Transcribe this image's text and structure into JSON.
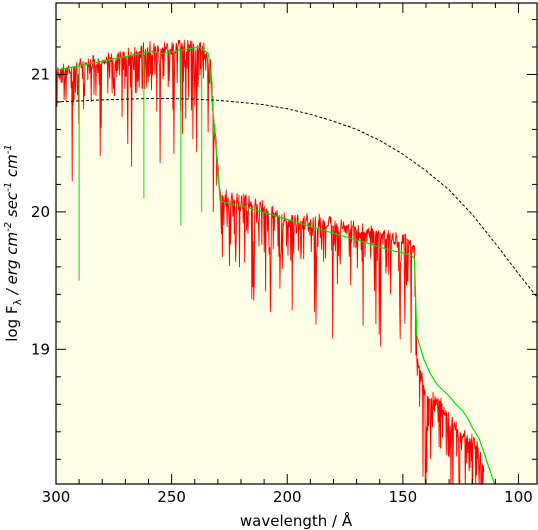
{
  "chart_data": {
    "type": "line",
    "xlabel": "wavelength / Å",
    "ylabel": {
      "prefix": "log F",
      "sub": "λ",
      "mid": " / erg cm",
      "sup1": "-2",
      "mid2": " sec",
      "sup2": "-1",
      "mid3": " cm",
      "sup3": "-1"
    },
    "xlim": [
      300,
      92
    ],
    "ylim": [
      18.02,
      21.52
    ],
    "x_reversed": true,
    "x_ticks": [
      300,
      250,
      200,
      150,
      100
    ],
    "y_ticks": [
      19,
      20,
      21
    ],
    "grid": false,
    "background": "#ffffe8",
    "series": [
      {
        "color": "#ff0000",
        "style": "noisy-spectrum",
        "x": [
          300,
          295,
          290,
          285,
          280,
          275,
          270,
          265,
          260,
          255,
          250,
          245,
          240,
          236,
          233,
          231,
          229,
          225,
          220,
          210,
          200,
          190,
          180,
          170,
          160,
          155,
          152,
          150,
          148,
          146,
          145,
          144,
          142,
          140,
          138,
          135,
          132,
          130,
          128,
          125,
          122,
          120,
          118,
          116,
          115
        ],
        "y": [
          21.06,
          21.08,
          21.1,
          21.12,
          21.14,
          21.16,
          21.18,
          21.2,
          21.22,
          21.2,
          21.24,
          21.26,
          21.25,
          21.22,
          21.1,
          20.6,
          20.17,
          20.15,
          20.12,
          20.06,
          19.98,
          19.97,
          19.95,
          19.92,
          19.88,
          19.86,
          19.84,
          19.83,
          19.82,
          19.8,
          19.78,
          18.98,
          18.82,
          18.75,
          18.7,
          18.65,
          18.6,
          18.55,
          18.5,
          18.45,
          18.4,
          18.38,
          18.33,
          18.25,
          18.15
        ]
      },
      {
        "color": "#00e000",
        "style": "line",
        "x": [
          300,
          285,
          270,
          258,
          255,
          245,
          238,
          234,
          231,
          229,
          225,
          215,
          205,
          195,
          185,
          175,
          165,
          155,
          150,
          146,
          145,
          144,
          141,
          138,
          135,
          130,
          127,
          124,
          122,
          120,
          117,
          115,
          112,
          108
        ],
        "y": [
          21.03,
          21.08,
          21.13,
          21.17,
          21.15,
          21.18,
          21.2,
          21.15,
          20.5,
          20.08,
          20.06,
          20.02,
          19.97,
          19.92,
          19.87,
          19.82,
          19.77,
          19.72,
          19.7,
          19.68,
          19.66,
          19.1,
          18.93,
          18.82,
          18.74,
          18.66,
          18.6,
          18.55,
          18.5,
          18.43,
          18.35,
          18.25,
          18.1,
          17.9
        ]
      },
      {
        "color": "#000000",
        "style": "dashed",
        "x": [
          300,
          280,
          260,
          250,
          240,
          230,
          220,
          210,
          200,
          190,
          180,
          170,
          160,
          150,
          140,
          130,
          120,
          110,
          100,
          92
        ],
        "y": [
          20.8,
          20.815,
          20.825,
          20.825,
          20.82,
          20.812,
          20.797,
          20.78,
          20.75,
          20.71,
          20.66,
          20.6,
          20.52,
          20.42,
          20.3,
          20.16,
          19.98,
          19.77,
          19.55,
          19.38
        ]
      }
    ]
  }
}
